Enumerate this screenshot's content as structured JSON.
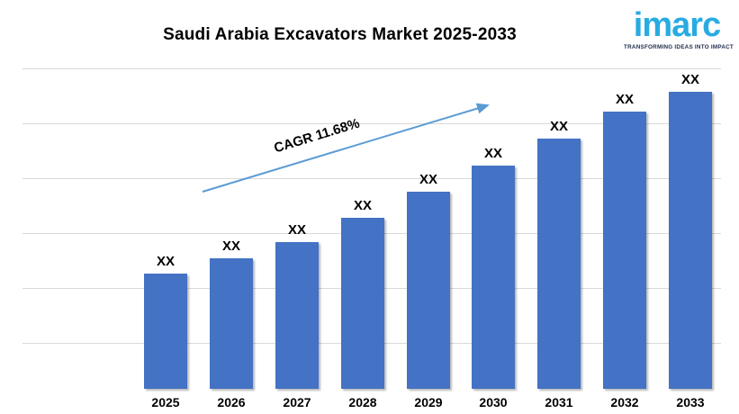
{
  "header": {
    "title": "Saudi Arabia Excavators Market 2025-2033",
    "logo": {
      "wordmark": "imarc",
      "tagline": "TRANSFORMING IDEAS INTO IMPACT",
      "wordmark_color": "#29ABE2",
      "tagline_color": "#1C2B4A"
    }
  },
  "chart_data": {
    "type": "bar",
    "title": "Saudi Arabia Excavators Market 2025-2033",
    "categories": [
      "2025",
      "2026",
      "2027",
      "2028",
      "2029",
      "2030",
      "2031",
      "2032",
      "2033"
    ],
    "value_labels": [
      "XX",
      "XX",
      "XX",
      "XX",
      "XX",
      "XX",
      "XX",
      "XX",
      "XX"
    ],
    "values_shown_as": "XX placeholders (no numeric values printed)",
    "relative_heights_pct": [
      36.1,
      40.7,
      45.8,
      53.4,
      61.5,
      69.7,
      78.1,
      86.5,
      92.7
    ],
    "annotation": {
      "label": "CAGR 11.68%",
      "type": "trend-arrow"
    },
    "xlabel": "",
    "ylabel": "",
    "y_axis_tick_labels_visible": false,
    "grid": true,
    "gridline_count": 6,
    "legend": false,
    "colors": {
      "bar": "#4472C4",
      "arrow": "#5B9BD5",
      "gridline": "#D9D9D9",
      "label": "#000000"
    }
  }
}
